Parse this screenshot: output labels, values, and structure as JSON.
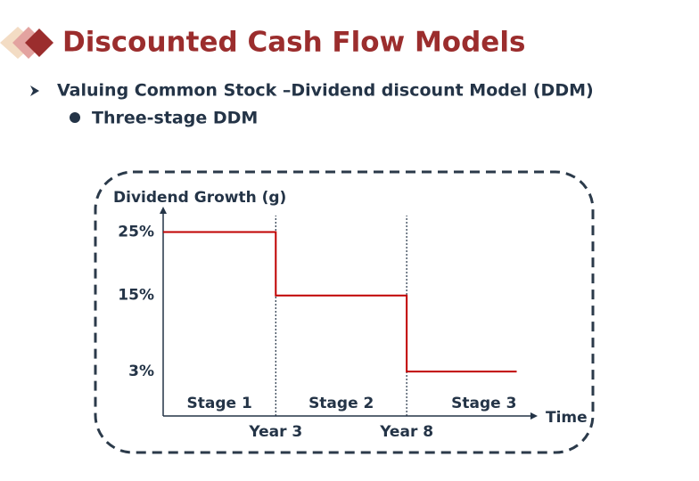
{
  "header": {
    "title": "Discounted Cash Flow Models"
  },
  "bullets": [
    "Valuing Common Stock –Dividend discount Model (DDM)",
    "Three-stage DDM"
  ],
  "chart_data": {
    "type": "step",
    "y_label": "Dividend Growth (g)",
    "x_label": "Time",
    "x": [
      -1.3,
      3,
      3,
      8,
      8,
      12.2
    ],
    "values": [
      25,
      25,
      15,
      15,
      3,
      3
    ],
    "color": "#c00000",
    "xlim": [
      -1.3,
      13
    ],
    "ylim": [
      -4,
      29
    ],
    "xticks": [
      {
        "value": 3,
        "label": "Year 3"
      },
      {
        "value": 8,
        "label": "Year 8"
      }
    ],
    "yticks": [
      {
        "value": 3,
        "label": "3%"
      },
      {
        "value": 15,
        "label": "15%"
      },
      {
        "value": 25,
        "label": "25%"
      }
    ],
    "annotations": [
      "Stage 1",
      "Stage 2",
      "Stage 3"
    ]
  }
}
